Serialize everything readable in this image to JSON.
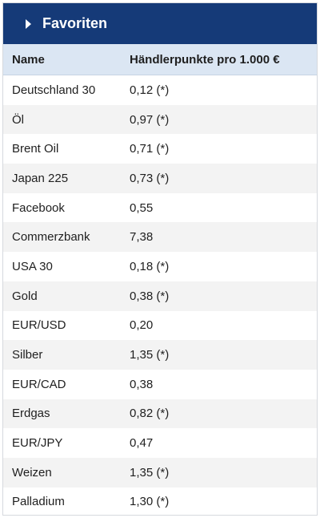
{
  "header": {
    "title": "Favoriten"
  },
  "table": {
    "columns": [
      "Name",
      "Händlerpunkte pro 1.000 €"
    ],
    "rows": [
      {
        "name": "Deutschland 30",
        "value": "0,12 (*)"
      },
      {
        "name": "Öl",
        "value": "0,97 (*)"
      },
      {
        "name": "Brent Oil",
        "value": "0,71 (*)"
      },
      {
        "name": "Japan 225",
        "value": "0,73 (*)"
      },
      {
        "name": "Facebook",
        "value": "0,55"
      },
      {
        "name": "Commerzbank",
        "value": "7,38"
      },
      {
        "name": "USA 30",
        "value": "0,18 (*)"
      },
      {
        "name": "Gold",
        "value": "0,38 (*)"
      },
      {
        "name": "EUR/USD",
        "value": "0,20"
      },
      {
        "name": "Silber",
        "value": "1,35 (*)"
      },
      {
        "name": "EUR/CAD",
        "value": "0,38"
      },
      {
        "name": "Erdgas",
        "value": "0,82 (*)"
      },
      {
        "name": "EUR/JPY",
        "value": "0,47"
      },
      {
        "name": "Weizen",
        "value": "1,35 (*)"
      },
      {
        "name": "Palladium",
        "value": "1,30 (*)"
      }
    ]
  },
  "colors": {
    "header_bg": "#153a78",
    "thead_bg": "#dbe6f3",
    "stripe": "#f3f3f3"
  },
  "icons": {
    "header_toggle": "caret-right-icon"
  }
}
